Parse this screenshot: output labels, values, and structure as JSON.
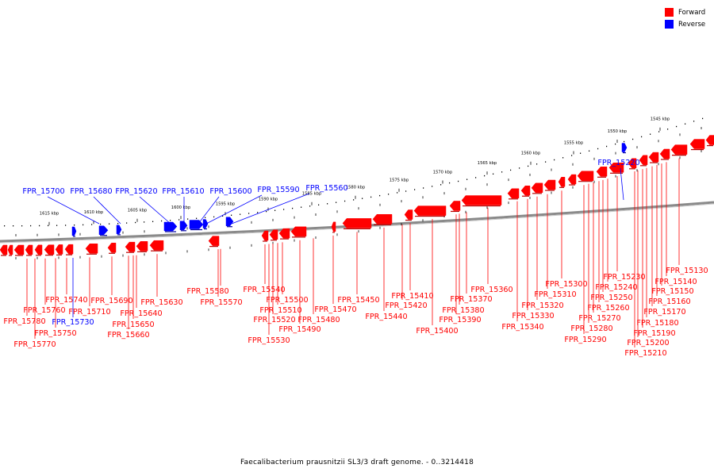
{
  "legend": {
    "forward": {
      "label": "Forward",
      "color": "#ff0000"
    },
    "reverse": {
      "label": "Reverse",
      "color": "#0000ff"
    }
  },
  "caption": "Faecalibacterium prausnitzii SL3/3 draft genome. - 0..3214418",
  "scale": {
    "ticks": [
      "1615 kbp",
      "1610 kbp",
      "1605 kbp",
      "1600 kbp",
      "1595 kbp",
      "1590 kbp",
      "1585 kbp",
      "1580 kbp",
      "1575 kbp",
      "1570 kbp",
      "1565 kbp",
      "1560 kbp",
      "1555 kbp",
      "1550 kbp",
      "1545 kbp"
    ]
  },
  "reverse_labels": [
    "FPR_15700",
    "FPR_15680",
    "FPR_15620",
    "FPR_15610",
    "FPR_15600",
    "FPR_15590",
    "FPR_15560",
    "FPR_15220",
    "FPR_15730"
  ],
  "forward_labels": [
    "FPR_15780",
    "FPR_15770",
    "FPR_15760",
    "FPR_15750",
    "FPR_15740",
    "FPR_15710",
    "FPR_15690",
    "FPR_15660",
    "FPR_15650",
    "FPR_15640",
    "FPR_15630",
    "FPR_15580",
    "FPR_15570",
    "FPR_15540",
    "FPR_15530",
    "FPR_15520",
    "FPR_15510",
    "FPR_15500",
    "FPR_15490",
    "FPR_15480",
    "FPR_15470",
    "FPR_15450",
    "FPR_15440",
    "FPR_15420",
    "FPR_15410",
    "FPR_15400",
    "FPR_15390",
    "FPR_15380",
    "FPR_15370",
    "FPR_15360",
    "FPR_15340",
    "FPR_15330",
    "FPR_15320",
    "FPR_15310",
    "FPR_15300",
    "FPR_15290",
    "FPR_15280",
    "FPR_15270",
    "FPR_15260",
    "FPR_15250",
    "FPR_15240",
    "FPR_15230",
    "FPR_15210",
    "FPR_15200",
    "FPR_15190",
    "FPR_15180",
    "FPR_15170",
    "FPR_15160",
    "FPR_15150",
    "FPR_15140",
    "FPR_15130"
  ]
}
